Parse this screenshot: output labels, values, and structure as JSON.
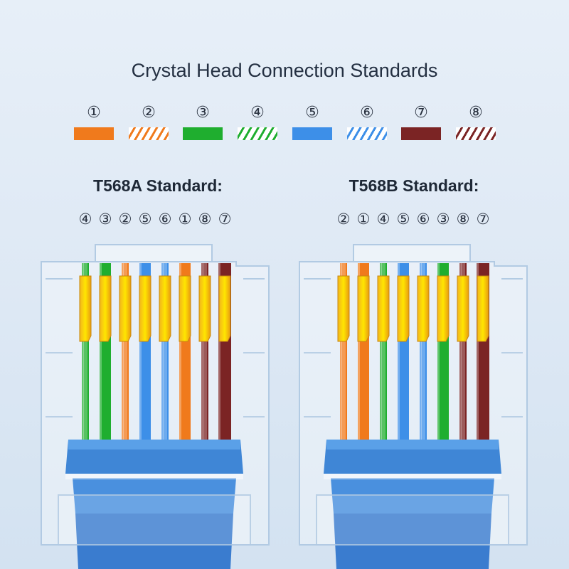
{
  "title": "Crystal Head Connection Standards",
  "legend": [
    {
      "num": "①",
      "color": "#f07a1c",
      "striped": false
    },
    {
      "num": "②",
      "color": "#f07a1c",
      "striped": true
    },
    {
      "num": "③",
      "color": "#1fae2f",
      "striped": false
    },
    {
      "num": "④",
      "color": "#1fae2f",
      "striped": true
    },
    {
      "num": "⑤",
      "color": "#3d8fe8",
      "striped": false
    },
    {
      "num": "⑥",
      "color": "#3d8fe8",
      "striped": true
    },
    {
      "num": "⑦",
      "color": "#7b2424",
      "striped": false
    },
    {
      "num": "⑧",
      "color": "#7b2424",
      "striped": true
    }
  ],
  "standards": [
    {
      "label": "T568A Standard:",
      "pins": [
        "④",
        "③",
        "②",
        "⑤",
        "⑥",
        "①",
        "⑧",
        "⑦"
      ],
      "order": [
        4,
        3,
        2,
        5,
        6,
        1,
        8,
        7
      ]
    },
    {
      "label": "T568B Standard:",
      "pins": [
        "②",
        "①",
        "④",
        "⑤",
        "⑥",
        "③",
        "⑧",
        "⑦"
      ],
      "order": [
        2,
        1,
        4,
        5,
        6,
        3,
        8,
        7
      ]
    }
  ]
}
